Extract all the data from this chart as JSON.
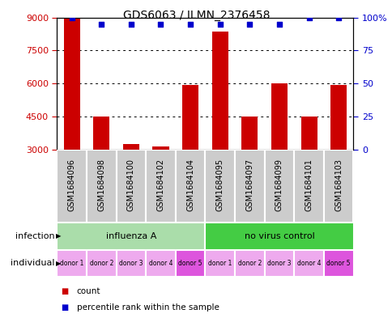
{
  "title": "GDS6063 / ILMN_2376458",
  "samples": [
    "GSM1684096",
    "GSM1684098",
    "GSM1684100",
    "GSM1684102",
    "GSM1684104",
    "GSM1684095",
    "GSM1684097",
    "GSM1684099",
    "GSM1684101",
    "GSM1684103"
  ],
  "counts": [
    9000,
    4500,
    3250,
    3150,
    5950,
    8350,
    4500,
    6000,
    4500,
    5950
  ],
  "percentile_raw": [
    1.0,
    0.95,
    0.95,
    0.95,
    0.95,
    0.95,
    0.95,
    0.95,
    1.0,
    1.0
  ],
  "ylim_left": [
    3000,
    9000
  ],
  "ylim_right": [
    0,
    100
  ],
  "yticks_left": [
    3000,
    4500,
    6000,
    7500,
    9000
  ],
  "yticks_right": [
    0,
    25,
    50,
    75,
    100
  ],
  "yticklabels_left": [
    "3000",
    "4500",
    "6000",
    "7500",
    "9000"
  ],
  "yticklabels_right": [
    "0",
    "25",
    "50",
    "75",
    "100%"
  ],
  "bar_color": "#cc0000",
  "dot_color": "#0000cc",
  "infection_groups": [
    {
      "label": "influenza A",
      "start": 0,
      "end": 5,
      "color": "#aaddaa"
    },
    {
      "label": "no virus control",
      "start": 5,
      "end": 10,
      "color": "#44cc44"
    }
  ],
  "individual_labels": [
    "donor 1",
    "donor 2",
    "donor 3",
    "donor 4",
    "donor 5",
    "donor 1",
    "donor 2",
    "donor 3",
    "donor 4",
    "donor 5"
  ],
  "individual_colors": [
    "#eeaaee",
    "#eeaaee",
    "#eeaaee",
    "#eeaaee",
    "#dd55dd",
    "#eeaaee",
    "#eeaaee",
    "#eeaaee",
    "#eeaaee",
    "#dd55dd"
  ],
  "sample_box_color": "#cccccc",
  "bg_color": "#ffffff",
  "grid_color": "#000000",
  "legend_count_color": "#cc0000",
  "legend_pct_color": "#0000cc"
}
